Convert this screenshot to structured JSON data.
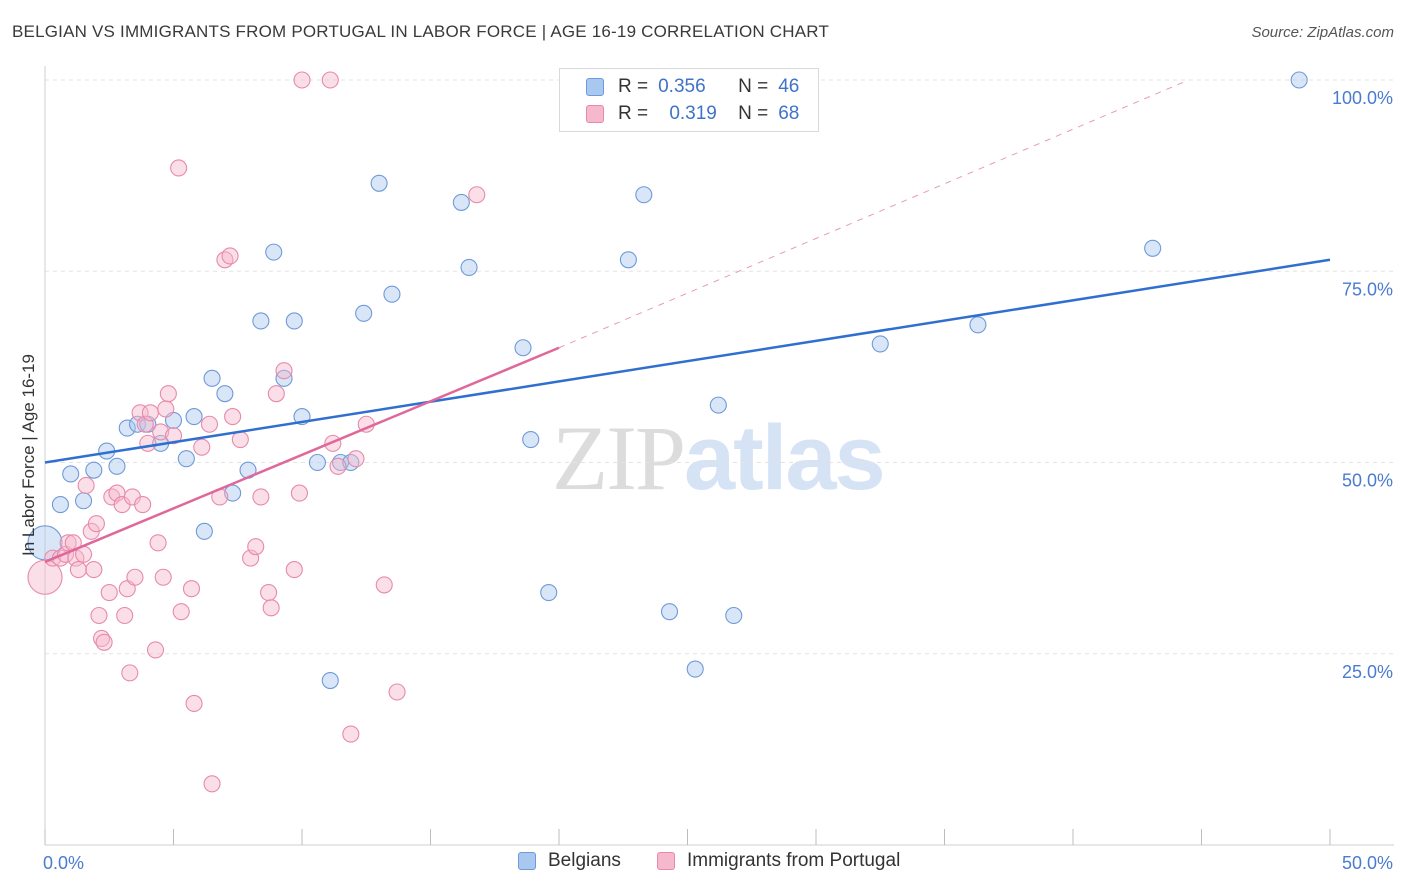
{
  "header": {
    "title": "BELGIAN VS IMMIGRANTS FROM PORTUGAL IN LABOR FORCE | AGE 16-19 CORRELATION CHART",
    "source": "Source: ZipAtlas.com"
  },
  "watermark": {
    "part1": "ZIP",
    "part2": "atlas"
  },
  "legend": {
    "rows": [
      {
        "r_label": "R =",
        "r_value": "0.356",
        "n_label": "N =",
        "n_value": "46",
        "color": "#a9c8ef",
        "border": "#6f9ad8"
      },
      {
        "r_label": "R =",
        "r_value": "0.319",
        "n_label": "N =",
        "n_value": "68",
        "color": "#f6b8cc",
        "border": "#e78aa9"
      }
    ]
  },
  "bottom_legend": [
    {
      "label": "Belgians",
      "color": "#a9c8ef",
      "border": "#6f9ad8"
    },
    {
      "label": "Immigrants from Portugal",
      "color": "#f6b8cc",
      "border": "#e78aa9"
    }
  ],
  "chart_data": {
    "type": "scatter",
    "title": "BELGIAN VS IMMIGRANTS FROM PORTUGAL IN LABOR FORCE | AGE 16-19 CORRELATION CHART",
    "xlabel": "",
    "ylabel": "In Labor Force | Age 16-19",
    "xlim": [
      0,
      50
    ],
    "ylim": [
      0,
      100
    ],
    "x_tick_labels": [
      "0.0%",
      "50.0%"
    ],
    "y_tick_labels": [
      "100.0%",
      "75.0%",
      "50.0%",
      "25.0%"
    ],
    "y_tick_values": [
      100,
      75,
      50,
      25
    ],
    "grid": true,
    "legend_position": "top-center",
    "series": [
      {
        "name": "Belgians",
        "color": "#6f9ad8",
        "fill": "#a9c8ef",
        "trend": {
          "x": [
            0,
            50
          ],
          "y": [
            50,
            76.5
          ],
          "style": "solid",
          "color": "#2f6fd0"
        },
        "points": [
          [
            0.0,
            39.5,
            2
          ],
          [
            0.6,
            44.5,
            1
          ],
          [
            1.0,
            48.5,
            1
          ],
          [
            1.5,
            45.0,
            1
          ],
          [
            1.9,
            49.0,
            1
          ],
          [
            2.4,
            51.5,
            1
          ],
          [
            2.8,
            49.5,
            1
          ],
          [
            3.2,
            54.5,
            1
          ],
          [
            3.6,
            55.0,
            1
          ],
          [
            4.0,
            55.0,
            1
          ],
          [
            4.5,
            52.5,
            1
          ],
          [
            5.0,
            55.5,
            1
          ],
          [
            5.5,
            50.5,
            1
          ],
          [
            5.8,
            56.0,
            1
          ],
          [
            6.2,
            41.0,
            1
          ],
          [
            6.5,
            61.0,
            1
          ],
          [
            7.0,
            59.0,
            1
          ],
          [
            7.3,
            46.0,
            1
          ],
          [
            7.9,
            49.0,
            1
          ],
          [
            8.4,
            68.5,
            1
          ],
          [
            8.9,
            77.5,
            1
          ],
          [
            9.3,
            61.0,
            1
          ],
          [
            9.7,
            68.5,
            1
          ],
          [
            10.0,
            56.0,
            1
          ],
          [
            10.6,
            50.0,
            1
          ],
          [
            11.1,
            21.5,
            1
          ],
          [
            11.5,
            50.0,
            1
          ],
          [
            11.9,
            50.0,
            1
          ],
          [
            12.4,
            69.5,
            1
          ],
          [
            13.0,
            86.5,
            1
          ],
          [
            13.5,
            72.0,
            1
          ],
          [
            16.2,
            84.0,
            1
          ],
          [
            16.5,
            75.5,
            1
          ],
          [
            18.6,
            65.0,
            1
          ],
          [
            18.9,
            53.0,
            1
          ],
          [
            19.6,
            33.0,
            1
          ],
          [
            22.7,
            76.5,
            1
          ],
          [
            23.3,
            85.0,
            1
          ],
          [
            24.3,
            30.5,
            1
          ],
          [
            25.3,
            23.0,
            1
          ],
          [
            26.2,
            57.5,
            1
          ],
          [
            26.8,
            30.0,
            1
          ],
          [
            32.5,
            65.5,
            1
          ],
          [
            36.3,
            68.0,
            1
          ],
          [
            43.1,
            78.0,
            1
          ],
          [
            48.8,
            100.0,
            1
          ]
        ]
      },
      {
        "name": "Immigrants from Portugal",
        "color": "#e78aa9",
        "fill": "#f6b8cc",
        "trend": {
          "x": [
            0,
            20
          ],
          "y": [
            37,
            65
          ],
          "style": "solid",
          "color": "#e0679a"
        },
        "trend_extension": {
          "x": [
            20,
            44.5
          ],
          "y": [
            65,
            100
          ],
          "style": "dashed",
          "color": "#e89ab8"
        },
        "points": [
          [
            0.0,
            35.0,
            2
          ],
          [
            0.3,
            37.5,
            1
          ],
          [
            0.6,
            37.5,
            1
          ],
          [
            0.8,
            38.0,
            1
          ],
          [
            0.9,
            39.5,
            1
          ],
          [
            1.1,
            39.5,
            1
          ],
          [
            1.2,
            37.5,
            1
          ],
          [
            1.3,
            36.0,
            1
          ],
          [
            1.5,
            38.0,
            1
          ],
          [
            1.6,
            47.0,
            1
          ],
          [
            1.8,
            41.0,
            1
          ],
          [
            1.9,
            36.0,
            1
          ],
          [
            2.0,
            42.0,
            1
          ],
          [
            2.1,
            30.0,
            1
          ],
          [
            2.2,
            27.0,
            1
          ],
          [
            2.3,
            26.5,
            1
          ],
          [
            2.5,
            33.0,
            1
          ],
          [
            2.6,
            45.5,
            1
          ],
          [
            2.8,
            46.0,
            1
          ],
          [
            3.0,
            44.5,
            1
          ],
          [
            3.1,
            30.0,
            1
          ],
          [
            3.2,
            33.5,
            1
          ],
          [
            3.3,
            22.5,
            1
          ],
          [
            3.4,
            45.5,
            1
          ],
          [
            3.5,
            35.0,
            1
          ],
          [
            3.7,
            56.5,
            1
          ],
          [
            3.8,
            44.5,
            1
          ],
          [
            3.9,
            55.0,
            1
          ],
          [
            4.0,
            52.5,
            1
          ],
          [
            4.1,
            56.5,
            1
          ],
          [
            4.3,
            25.5,
            1
          ],
          [
            4.4,
            39.5,
            1
          ],
          [
            4.5,
            54.0,
            1
          ],
          [
            4.6,
            35.0,
            1
          ],
          [
            4.7,
            57.0,
            1
          ],
          [
            4.8,
            59.0,
            1
          ],
          [
            5.0,
            53.5,
            1
          ],
          [
            5.2,
            88.5,
            1
          ],
          [
            5.3,
            30.5,
            1
          ],
          [
            5.7,
            33.5,
            1
          ],
          [
            5.8,
            18.5,
            1
          ],
          [
            6.1,
            52.0,
            1
          ],
          [
            6.4,
            55.0,
            1
          ],
          [
            6.5,
            8.0,
            1
          ],
          [
            6.8,
            45.5,
            1
          ],
          [
            7.0,
            76.5,
            1
          ],
          [
            7.2,
            77.0,
            1
          ],
          [
            7.3,
            56.0,
            1
          ],
          [
            7.6,
            53.0,
            1
          ],
          [
            8.0,
            37.5,
            1
          ],
          [
            8.2,
            39.0,
            1
          ],
          [
            8.4,
            45.5,
            1
          ],
          [
            8.7,
            33.0,
            1
          ],
          [
            8.8,
            31.0,
            1
          ],
          [
            9.0,
            59.0,
            1
          ],
          [
            9.3,
            62.0,
            1
          ],
          [
            9.7,
            36.0,
            1
          ],
          [
            9.9,
            46.0,
            1
          ],
          [
            10.0,
            100.0,
            1
          ],
          [
            11.1,
            100.0,
            1
          ],
          [
            11.2,
            52.5,
            1
          ],
          [
            11.4,
            49.5,
            1
          ],
          [
            11.9,
            14.5,
            1
          ],
          [
            12.1,
            50.5,
            1
          ],
          [
            12.5,
            55.0,
            1
          ],
          [
            13.2,
            34.0,
            1
          ],
          [
            13.7,
            20.0,
            1
          ],
          [
            16.8,
            85.0,
            1
          ]
        ]
      }
    ]
  }
}
